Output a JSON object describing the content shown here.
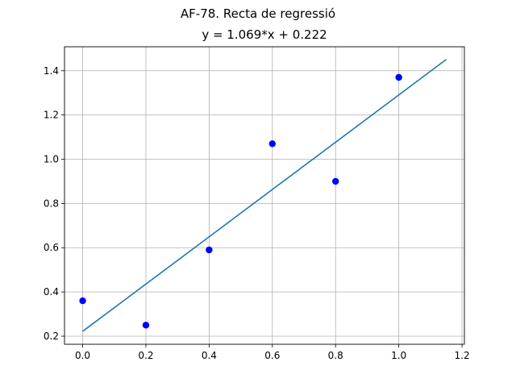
{
  "figure": {
    "suptitle": "AF-78. Recta de regressió",
    "title": "y = 1.069*x + 0.222"
  },
  "chart_data": {
    "type": "scatter",
    "title": "y = 1.069*x + 0.222",
    "xlabel": "",
    "ylabel": "",
    "xlim": [
      -0.0575,
      1.2075
    ],
    "ylim": [
      0.1635,
      1.5085
    ],
    "grid": true,
    "xticks": [
      0.0,
      0.2,
      0.4,
      0.6,
      0.8,
      1.0,
      1.2
    ],
    "yticks": [
      0.2,
      0.4,
      0.6,
      0.8,
      1.0,
      1.2,
      1.4
    ],
    "xtick_labels": [
      "0.0",
      "0.2",
      "0.4",
      "0.6",
      "0.8",
      "1.0",
      "1.2"
    ],
    "ytick_labels": [
      "0.2",
      "0.4",
      "0.6",
      "0.8",
      "1.0",
      "1.2",
      "1.4"
    ],
    "series": [
      {
        "kind": "scatter",
        "color": "#0000ff",
        "x": [
          0.0,
          0.2,
          0.4,
          0.6,
          0.8,
          1.0
        ],
        "y": [
          0.36,
          0.25,
          0.59,
          1.07,
          0.9,
          1.37
        ]
      },
      {
        "kind": "line",
        "color": "#1f77b4",
        "x": [
          0.0,
          1.15
        ],
        "y": [
          0.222,
          1.451
        ]
      }
    ]
  }
}
